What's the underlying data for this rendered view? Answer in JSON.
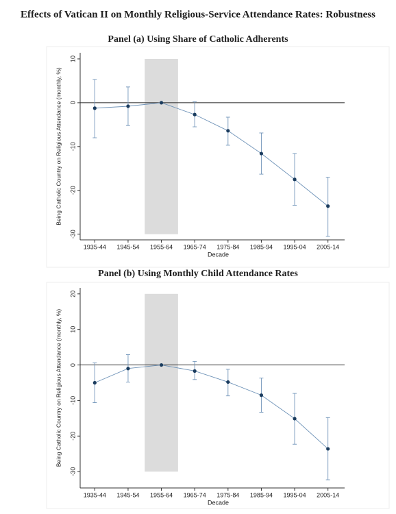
{
  "title": "Effects of Vatican II on Monthly Religious-Service Attendance Rates: Robustness",
  "chart_data": [
    {
      "type": "line",
      "title": "Panel (a) Using Share of Catholic Adherents",
      "x_label": "Decade",
      "y_label": "Being Catholic Country on Religious Attendance (monthly, %)",
      "categories": [
        "1935-44",
        "1945-54",
        "1955-64",
        "1965-74",
        "1975-84",
        "1985-94",
        "1995-04",
        "2005-14"
      ],
      "values": [
        -1.25,
        -0.8,
        0,
        -2.7,
        -6.4,
        -11.6,
        -17.5,
        -23.6
      ],
      "lower": [
        -8.0,
        -5.2,
        null,
        -5.5,
        -9.7,
        -16.3,
        -23.4,
        -30.5
      ],
      "upper": [
        5.3,
        3.6,
        null,
        0.2,
        -3.3,
        -6.9,
        -11.6,
        -17.0
      ],
      "ylim": [
        -31.3,
        11.4
      ],
      "yticks": [
        -30,
        -20,
        -10,
        0,
        10
      ],
      "shaded_category": "1955-64",
      "reference_line": 0,
      "line_color": "#6f93b8",
      "marker_color": "#1b3c5e",
      "shade_color": "#dcdcdc"
    },
    {
      "type": "line",
      "title": "Panel (b) Using Monthly Child Attendance Rates",
      "x_label": "Decade",
      "y_label": "Being Catholic Country on Religious Attendance (monthly, %)",
      "categories": [
        "1935-44",
        "1945-54",
        "1955-64",
        "1965-74",
        "1975-84",
        "1985-94",
        "1995-04",
        "2005-14"
      ],
      "values": [
        -5.0,
        -1.0,
        0,
        -1.7,
        -4.8,
        -8.5,
        -15.1,
        -23.6
      ],
      "lower": [
        -10.6,
        -4.8,
        null,
        -4.1,
        -8.7,
        -13.3,
        -22.3,
        -32.3
      ],
      "upper": [
        0.6,
        2.9,
        null,
        1.0,
        -1.2,
        -3.7,
        -8.0,
        -14.8
      ],
      "ylim": [
        -34.6,
        21.7
      ],
      "yticks": [
        -30,
        -20,
        -10,
        0,
        10,
        20
      ],
      "shaded_category": "1955-64",
      "reference_line": 0,
      "line_color": "#6f93b8",
      "marker_color": "#1b3c5e",
      "shade_color": "#dcdcdc"
    }
  ]
}
